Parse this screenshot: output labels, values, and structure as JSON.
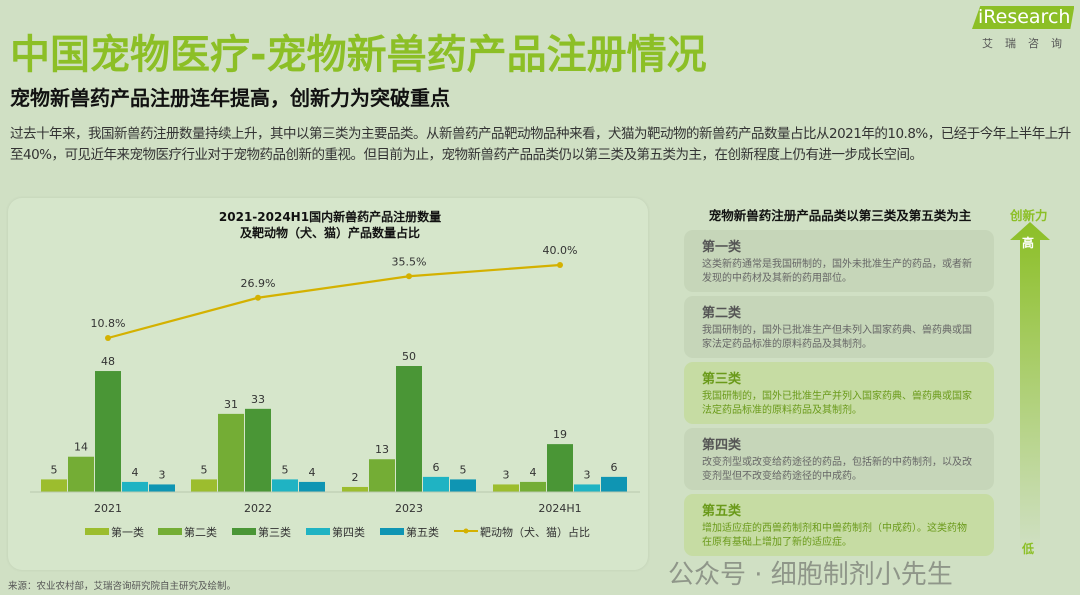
{
  "title": "中国宠物医疗-宠物新兽药产品注册情况",
  "subtitle": "宠物新兽药产品注册连年提高，创新力为突破重点",
  "intro": "过去十年来，我国新兽药注册数量持续上升，其中以第三类为主要品类。从新兽药产品靶动物品种来看，犬猫为靶动物的新兽药产品数量占比从2021年的10.8%，已经于今年上半年上升至40%，可见近年来宠物医疗行业对于宠物药品创新的重视。但目前为止，宠物新兽药产品品类仍以第三类及第五类为主，在创新程度上仍有进一步成长空间。",
  "logo": {
    "en": "iResearch",
    "cn": "艾瑞咨询"
  },
  "chart_data": {
    "type": "bar",
    "title": "2021-2024H1国内新兽药产品注册数量",
    "title2": "及靶动物（犬、猫）产品数量占比",
    "categories": [
      "2021",
      "2022",
      "2023",
      "2024H1"
    ],
    "series": [
      {
        "name": "第一类",
        "color": "#9cbd2e",
        "values": [
          5,
          5,
          2,
          3
        ]
      },
      {
        "name": "第二类",
        "color": "#74ad35",
        "values": [
          14,
          31,
          13,
          4
        ]
      },
      {
        "name": "第三类",
        "color": "#4a9636",
        "values": [
          48,
          33,
          50,
          19
        ]
      },
      {
        "name": "第四类",
        "color": "#1fb3c3",
        "values": [
          4,
          5,
          6,
          3
        ]
      },
      {
        "name": "第五类",
        "color": "#0f95b3",
        "values": [
          3,
          4,
          5,
          6
        ]
      }
    ],
    "line": {
      "name": "靶动物（犬、猫）占比",
      "color": "#d4b100",
      "values": [
        10.8,
        26.9,
        35.5,
        40.0
      ],
      "labels": [
        "10.8%",
        "26.9%",
        "35.5%",
        "40.0%"
      ]
    },
    "legend": "bottom"
  },
  "right": {
    "title": "宠物新兽药注册产品品类以第三类及第五类为主",
    "axis_label": "创新力",
    "high": "高",
    "low": "低",
    "cards": [
      {
        "h": "第一类",
        "p": "这类新药通常是我国研制的，国外未批准生产的药品，或者新发现的中药材及其新的药用部位。"
      },
      {
        "h": "第二类",
        "p": "我国研制的，国外已批准生产但未列入国家药典、兽药典或国家法定药品标准的原料药品及其制剂。"
      },
      {
        "h": "第三类",
        "p": "我国研制的，国外已批准生产并列入国家药典、兽药典或国家法定药品标准的原料药品及其制剂。"
      },
      {
        "h": "第四类",
        "p": "改变剂型或改变给药途径的药品，包括新的中药制剂，以及改变剂型但不改变给药途径的中成药。"
      },
      {
        "h": "第五类",
        "p": "增加适应症的西兽药制剂和中兽药制剂（中成药）。这类药物在原有基础上增加了新的适应症。"
      }
    ]
  },
  "source": "来源：农业农村部，艾瑞咨询研究院自主研究及绘制。",
  "watermark": "公众号 · 细胞制剂小先生"
}
